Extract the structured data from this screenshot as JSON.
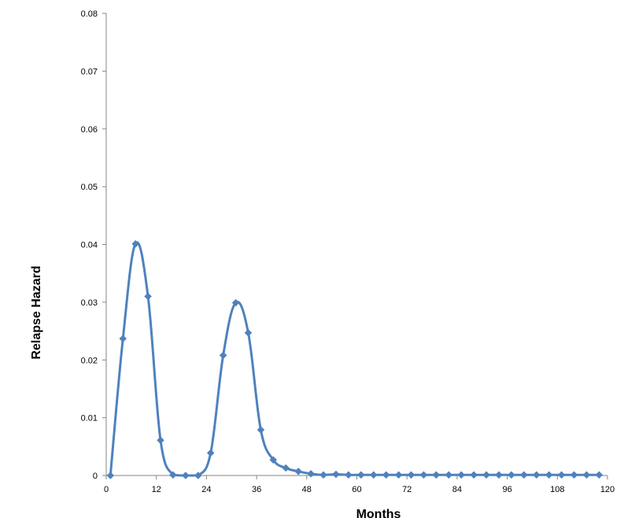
{
  "chart_data": {
    "type": "line",
    "title": "",
    "xlabel": "Months",
    "ylabel": "Relapse Hazard",
    "xlim": [
      0,
      120
    ],
    "ylim": [
      0,
      0.08
    ],
    "x_ticks": [
      0,
      12,
      24,
      36,
      48,
      60,
      72,
      84,
      96,
      108,
      120
    ],
    "x_tick_labels": [
      "0",
      "12",
      "24",
      "36",
      "48",
      "60",
      "72",
      "84",
      "96",
      "108",
      "120"
    ],
    "y_ticks": [
      0,
      0.01,
      0.02,
      0.03,
      0.04,
      0.05,
      0.06,
      0.07,
      0.08
    ],
    "y_tick_labels": [
      "0",
      "0.01",
      "0.02",
      "0.03",
      "0.04",
      "0.05",
      "0.06",
      "0.07",
      "0.08"
    ],
    "grid": false,
    "legend": "none",
    "series": [
      {
        "color": "#4F81BD",
        "marker": "diamond",
        "smooth": true,
        "x": [
          1,
          4,
          7,
          10,
          13,
          16,
          19,
          22,
          25,
          28,
          31,
          34,
          37,
          40,
          43,
          46,
          49,
          52,
          55,
          58,
          61,
          64,
          67,
          70,
          73,
          76,
          79,
          82,
          85,
          88,
          91,
          94,
          97,
          100,
          103,
          106,
          109,
          112,
          115,
          118
        ],
        "y": [
          0,
          0.0237,
          0.0401,
          0.031,
          0.0061,
          0.0001,
          0,
          0,
          0.0039,
          0.0208,
          0.0299,
          0.0247,
          0.0079,
          0.0027,
          0.0013,
          0.0007,
          0.0003,
          0.0001,
          0.0002,
          0.0001,
          0.0001,
          0.0001,
          0.0001,
          0.0001,
          0.0001,
          0.0001,
          0.0001,
          0.0001,
          0.0001,
          0.0001,
          0.0001,
          0.0001,
          0.0001,
          0.0001,
          0.0001,
          0.0001,
          0.0001,
          0.0001,
          0.0001,
          0.0001
        ]
      }
    ]
  }
}
